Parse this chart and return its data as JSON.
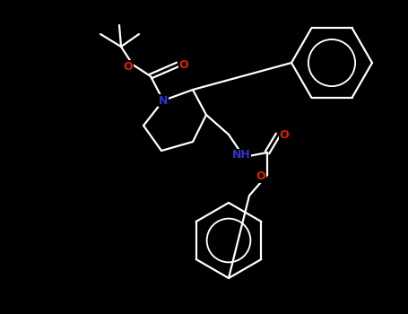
{
  "bg_color": "#000000",
  "bond_color": "#ffffff",
  "N_color": "#3333cc",
  "O_color": "#dd2200",
  "lw": 1.6,
  "figsize": [
    4.55,
    3.5
  ],
  "dpi": 100,
  "xlim": [
    0,
    455
  ],
  "ylim": [
    0,
    350
  ]
}
